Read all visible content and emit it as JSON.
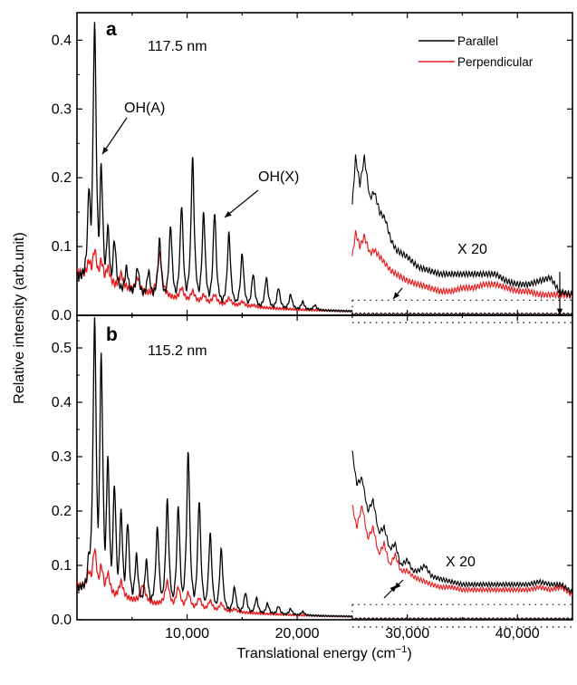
{
  "chart_data": {
    "type": "line",
    "x_label": "Translational energy (cm",
    "x_label_sup": "−1",
    "x_label_tail": ")",
    "y_label": "Relative intensity (arb.unit)",
    "xlim": [
      0,
      45000
    ],
    "x_ticks": [
      10000,
      20000,
      30000,
      40000
    ],
    "x_tick_labels": [
      "10,000",
      "20,000",
      "30,000",
      "40,000"
    ],
    "legend": [
      {
        "name": "Parallel",
        "color": "#000000"
      },
      {
        "name": "Perpendicular",
        "color": "#e8191b"
      }
    ],
    "panels": [
      {
        "letter": "a",
        "wavelength": "117.5 nm",
        "ylim": [
          0,
          0.44
        ],
        "y_ticks": [
          0.0,
          0.1,
          0.2,
          0.3,
          0.4
        ],
        "y_tick_labels": [
          "0.0",
          "0.1",
          "0.2",
          "0.3",
          "0.4"
        ],
        "annotations": [
          "OH(A)",
          "OH(X)"
        ],
        "zoom_label": "X 20",
        "zoom_start": 25000,
        "parallel_peaks": [
          [
            1100,
            0.19
          ],
          [
            1600,
            0.43
          ],
          [
            2200,
            0.22
          ],
          [
            2800,
            0.13
          ],
          [
            3400,
            0.11
          ],
          [
            4500,
            0.07
          ],
          [
            5500,
            0.07
          ],
          [
            6500,
            0.065
          ],
          [
            7500,
            0.11
          ],
          [
            8500,
            0.13
          ],
          [
            9500,
            0.16
          ],
          [
            10500,
            0.23
          ],
          [
            11500,
            0.15
          ],
          [
            12500,
            0.15
          ],
          [
            13800,
            0.12
          ],
          [
            15000,
            0.09
          ],
          [
            16000,
            0.06
          ],
          [
            17200,
            0.055
          ],
          [
            18300,
            0.04
          ],
          [
            19400,
            0.03
          ],
          [
            20500,
            0.02
          ],
          [
            21600,
            0.015
          ]
        ],
        "perpendicular_peaks": [
          [
            1100,
            0.08
          ],
          [
            1600,
            0.095
          ],
          [
            2200,
            0.08
          ],
          [
            2800,
            0.07
          ],
          [
            4000,
            0.06
          ],
          [
            5500,
            0.055
          ],
          [
            7500,
            0.09
          ],
          [
            9500,
            0.04
          ],
          [
            10500,
            0.035
          ],
          [
            11500,
            0.03
          ],
          [
            12500,
            0.03
          ],
          [
            13800,
            0.025
          ],
          [
            15000,
            0.02
          ],
          [
            16000,
            0.015
          ]
        ],
        "parallel_zoom": [
          [
            25000,
            0.16
          ],
          [
            25300,
            0.23
          ],
          [
            25700,
            0.19
          ],
          [
            26100,
            0.23
          ],
          [
            26600,
            0.17
          ],
          [
            27000,
            0.18
          ],
          [
            27500,
            0.15
          ],
          [
            28000,
            0.14
          ],
          [
            28500,
            0.11
          ],
          [
            29000,
            0.095
          ],
          [
            29500,
            0.09
          ],
          [
            30000,
            0.085
          ],
          [
            31000,
            0.07
          ],
          [
            32000,
            0.065
          ],
          [
            33000,
            0.06
          ],
          [
            34000,
            0.06
          ],
          [
            35000,
            0.06
          ],
          [
            36000,
            0.06
          ],
          [
            37000,
            0.06
          ],
          [
            38000,
            0.06
          ],
          [
            39000,
            0.05
          ],
          [
            40000,
            0.045
          ],
          [
            41000,
            0.045
          ],
          [
            42000,
            0.05
          ],
          [
            43000,
            0.055
          ],
          [
            43800,
            0.035
          ],
          [
            45000,
            0.03
          ]
        ],
        "perpendicular_zoom": [
          [
            25000,
            0.085
          ],
          [
            25300,
            0.12
          ],
          [
            25700,
            0.1
          ],
          [
            26100,
            0.115
          ],
          [
            26600,
            0.09
          ],
          [
            27000,
            0.095
          ],
          [
            27500,
            0.085
          ],
          [
            28000,
            0.075
          ],
          [
            28500,
            0.065
          ],
          [
            29000,
            0.06
          ],
          [
            29500,
            0.055
          ],
          [
            30000,
            0.05
          ],
          [
            31000,
            0.045
          ],
          [
            32000,
            0.04
          ],
          [
            33000,
            0.035
          ],
          [
            34000,
            0.035
          ],
          [
            35000,
            0.04
          ],
          [
            36000,
            0.04
          ],
          [
            37000,
            0.045
          ],
          [
            38000,
            0.045
          ],
          [
            39000,
            0.04
          ],
          [
            40000,
            0.035
          ],
          [
            41000,
            0.035
          ],
          [
            42000,
            0.03
          ],
          [
            43000,
            0.03
          ],
          [
            44000,
            0.03
          ],
          [
            45000,
            0.028
          ]
        ]
      },
      {
        "letter": "b",
        "wavelength": "115.2 nm",
        "ylim": [
          0,
          0.56
        ],
        "y_ticks": [
          0.0,
          0.1,
          0.2,
          0.3,
          0.4,
          0.5
        ],
        "y_tick_labels": [
          "0.0",
          "0.1",
          "0.2",
          "0.3",
          "0.4",
          "0.5"
        ],
        "annotations": [],
        "zoom_label": "X 20",
        "zoom_start": 25000,
        "parallel_peaks": [
          [
            1100,
            0.13
          ],
          [
            1600,
            0.56
          ],
          [
            2200,
            0.49
          ],
          [
            2800,
            0.3
          ],
          [
            3400,
            0.25
          ],
          [
            4000,
            0.2
          ],
          [
            4600,
            0.18
          ],
          [
            5400,
            0.12
          ],
          [
            6300,
            0.11
          ],
          [
            7300,
            0.17
          ],
          [
            8200,
            0.22
          ],
          [
            9200,
            0.21
          ],
          [
            10100,
            0.31
          ],
          [
            11100,
            0.22
          ],
          [
            12100,
            0.16
          ],
          [
            13100,
            0.13
          ],
          [
            14300,
            0.06
          ],
          [
            15300,
            0.05
          ],
          [
            16300,
            0.04
          ],
          [
            17300,
            0.03
          ],
          [
            18300,
            0.025
          ],
          [
            19400,
            0.02
          ],
          [
            20500,
            0.015
          ]
        ],
        "perpendicular_peaks": [
          [
            1100,
            0.09
          ],
          [
            1600,
            0.13
          ],
          [
            2200,
            0.1
          ],
          [
            2800,
            0.085
          ],
          [
            4000,
            0.07
          ],
          [
            6000,
            0.065
          ],
          [
            8200,
            0.07
          ],
          [
            9200,
            0.06
          ],
          [
            10100,
            0.05
          ],
          [
            11100,
            0.04
          ],
          [
            12100,
            0.035
          ],
          [
            13100,
            0.03
          ],
          [
            14300,
            0.02
          ]
        ],
        "parallel_zoom": [
          [
            25000,
            0.31
          ],
          [
            25400,
            0.25
          ],
          [
            25900,
            0.26
          ],
          [
            26400,
            0.2
          ],
          [
            26900,
            0.22
          ],
          [
            27400,
            0.16
          ],
          [
            27900,
            0.17
          ],
          [
            28400,
            0.13
          ],
          [
            28900,
            0.14
          ],
          [
            29400,
            0.1
          ],
          [
            30000,
            0.11
          ],
          [
            30500,
            0.09
          ],
          [
            31000,
            0.09
          ],
          [
            31600,
            0.1
          ],
          [
            32200,
            0.08
          ],
          [
            33000,
            0.075
          ],
          [
            34000,
            0.07
          ],
          [
            35000,
            0.065
          ],
          [
            36000,
            0.065
          ],
          [
            37000,
            0.065
          ],
          [
            38000,
            0.065
          ],
          [
            39000,
            0.065
          ],
          [
            40000,
            0.065
          ],
          [
            41000,
            0.065
          ],
          [
            42000,
            0.07
          ],
          [
            43000,
            0.065
          ],
          [
            44000,
            0.065
          ],
          [
            45000,
            0.05
          ]
        ],
        "perpendicular_zoom": [
          [
            25000,
            0.21
          ],
          [
            25400,
            0.17
          ],
          [
            25900,
            0.21
          ],
          [
            26400,
            0.15
          ],
          [
            26900,
            0.17
          ],
          [
            27400,
            0.12
          ],
          [
            27900,
            0.14
          ],
          [
            28400,
            0.1
          ],
          [
            28900,
            0.12
          ],
          [
            29400,
            0.09
          ],
          [
            30000,
            0.09
          ],
          [
            30500,
            0.08
          ],
          [
            31000,
            0.075
          ],
          [
            31600,
            0.07
          ],
          [
            32200,
            0.065
          ],
          [
            33000,
            0.06
          ],
          [
            34000,
            0.06
          ],
          [
            35000,
            0.055
          ],
          [
            36000,
            0.055
          ],
          [
            37000,
            0.055
          ],
          [
            38000,
            0.055
          ],
          [
            39000,
            0.055
          ],
          [
            40000,
            0.055
          ],
          [
            41000,
            0.055
          ],
          [
            42000,
            0.06
          ],
          [
            43000,
            0.055
          ],
          [
            44000,
            0.06
          ],
          [
            45000,
            0.045
          ]
        ]
      }
    ]
  }
}
